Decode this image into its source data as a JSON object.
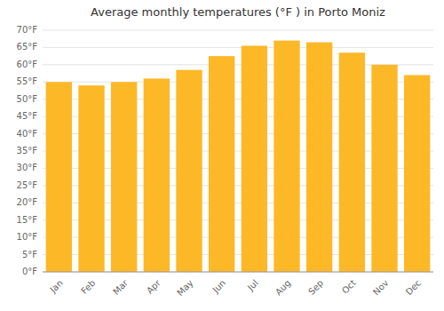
{
  "chart_data": {
    "type": "bar",
    "title": "Average monthly temperatures (°F ) in Porto Moniz",
    "categories": [
      "Jan",
      "Feb",
      "Mar",
      "Apr",
      "May",
      "Jun",
      "Jul",
      "Aug",
      "Sep",
      "Oct",
      "Nov",
      "Dec"
    ],
    "values": [
      55.0,
      54.0,
      55.0,
      56.0,
      58.5,
      62.5,
      65.5,
      67.0,
      66.5,
      63.5,
      60.0,
      57.0
    ],
    "color": "#FDB827",
    "ylim": [
      0,
      70
    ],
    "yticks": [
      {
        "value": 0,
        "label": "0°F"
      },
      {
        "value": 5,
        "label": "5°F"
      },
      {
        "value": 10,
        "label": "10°F"
      },
      {
        "value": 15,
        "label": "15°F"
      },
      {
        "value": 20,
        "label": "20°F"
      },
      {
        "value": 25,
        "label": "25°F"
      },
      {
        "value": 30,
        "label": "30°F"
      },
      {
        "value": 35,
        "label": "35°F"
      },
      {
        "value": 40,
        "label": "40°F"
      },
      {
        "value": 45,
        "label": "45°F"
      },
      {
        "value": 50,
        "label": "50°F"
      },
      {
        "value": 55,
        "label": "55°F"
      },
      {
        "value": 60,
        "label": "60°F"
      },
      {
        "value": 65,
        "label": "65°F"
      },
      {
        "value": 70,
        "label": "70°F"
      }
    ],
    "grid": true
  }
}
